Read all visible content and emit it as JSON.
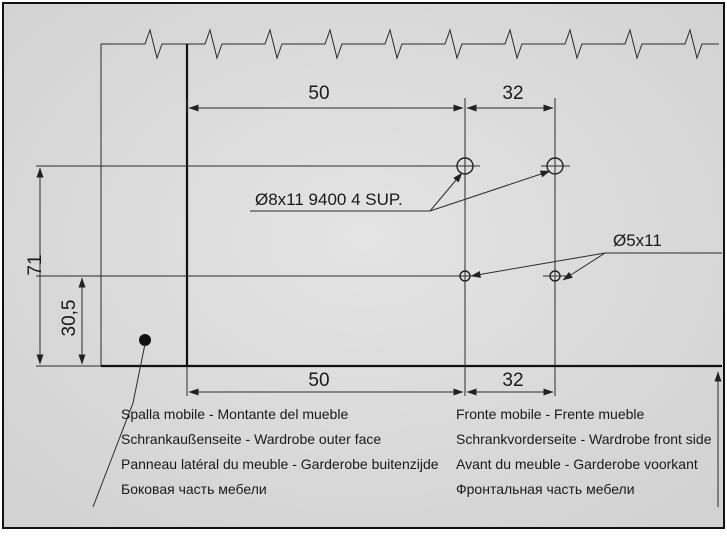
{
  "dimensions": {
    "top_left": "50",
    "top_right": "32",
    "bottom_left": "50",
    "bottom_right": "32",
    "height_total": "71",
    "height_lower": "30,5"
  },
  "callouts": {
    "hinge_holes": "Ø8x11 9400 4 SUP.",
    "small_holes": "Ø5x11"
  },
  "legend_left": [
    "Spalla mobile - Montante del mueble",
    "Schrankaußenseite - Wardrobe outer face",
    "Panneau latéral du meuble - Garderobe buitenzijde",
    "Боковая часть мебели"
  ],
  "legend_right": [
    "Fronte mobile - Frente mueble",
    "Schrankvorderseite - Wardrobe front side",
    "Avant du meuble - Garderobe voorkant",
    "Фронтальная часть мебели"
  ],
  "colors": {
    "background": "#ffffff",
    "panel": "#dedede",
    "line": "#222222"
  }
}
